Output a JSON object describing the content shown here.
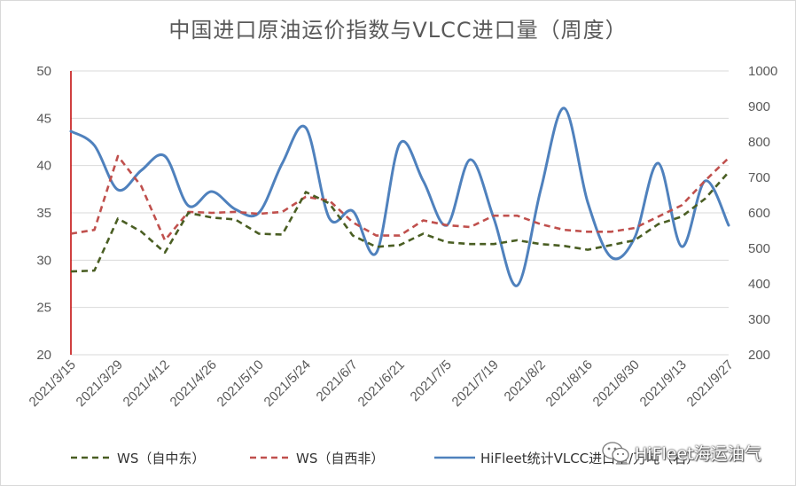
{
  "chart_data": {
    "type": "line",
    "title": "中国进口原油运价指数与VLCC进口量（周度）",
    "x": [
      "2021/3/15",
      "2021/3/22",
      "2021/3/29",
      "2021/4/5",
      "2021/4/12",
      "2021/4/19",
      "2021/4/26",
      "2021/5/3",
      "2021/5/10",
      "2021/5/17",
      "2021/5/24",
      "2021/5/31",
      "2021/6/7",
      "2021/6/14",
      "2021/6/21",
      "2021/6/28",
      "2021/7/5",
      "2021/7/12",
      "2021/7/19",
      "2021/7/26",
      "2021/8/2",
      "2021/8/9",
      "2021/8/16",
      "2021/8/23",
      "2021/8/30",
      "2021/9/6",
      "2021/9/13",
      "2021/9/20",
      "2021/9/27"
    ],
    "x_tick_labels": [
      "2021/3/15",
      "2021/3/29",
      "2021/4/12",
      "2021/4/26",
      "2021/5/10",
      "2021/5/24",
      "2021/6/7",
      "2021/6/21",
      "2021/7/5",
      "2021/7/19",
      "2021/8/2",
      "2021/8/16",
      "2021/8/30",
      "2021/9/13",
      "2021/9/27"
    ],
    "y_left": {
      "ylim": [
        20,
        50
      ],
      "ticks": [
        "20",
        "25",
        "30",
        "35",
        "40",
        "45",
        "50"
      ]
    },
    "y_right": {
      "ylim": [
        200,
        1000
      ],
      "ticks": [
        "200",
        "300",
        "400",
        "500",
        "600",
        "700",
        "800",
        "900",
        "1000"
      ]
    },
    "series": [
      {
        "name": "WS（自中东）",
        "axis": "left",
        "color": "#4a5e23",
        "dash": "dashed",
        "values": [
          28.8,
          28.9,
          34.4,
          33.0,
          30.8,
          35.0,
          34.5,
          34.3,
          32.8,
          32.7,
          37.2,
          36.0,
          32.6,
          31.4,
          31.6,
          32.8,
          31.9,
          31.7,
          31.7,
          32.1,
          31.7,
          31.5,
          31.1,
          31.6,
          32.1,
          33.8,
          34.6,
          36.5,
          39.3
        ]
      },
      {
        "name": "WS（自西非）",
        "axis": "left",
        "color": "#c0504d",
        "dash": "dashed",
        "values": [
          32.8,
          33.2,
          41.0,
          37.8,
          32.1,
          35.1,
          35.0,
          35.1,
          34.9,
          35.1,
          36.7,
          36.3,
          34.0,
          32.6,
          32.6,
          34.2,
          33.7,
          33.5,
          34.7,
          34.7,
          33.8,
          33.2,
          33.0,
          33.0,
          33.4,
          34.6,
          35.8,
          38.4,
          40.8
        ]
      },
      {
        "name": "HiFleet统计VLCC进口量/万吨（右）",
        "axis": "right",
        "color": "#4f81bd",
        "dash": "solid",
        "values": [
          830,
          790,
          665,
          720,
          760,
          620,
          660,
          610,
          600,
          740,
          840,
          585,
          605,
          487,
          795,
          690,
          565,
          750,
          585,
          395,
          665,
          895,
          630,
          475,
          530,
          740,
          505,
          690,
          565
        ]
      }
    ],
    "legend": {
      "position": "bottom"
    }
  },
  "watermark": {
    "text": "HiFleet海运油气",
    "icon": "wechat-icon"
  }
}
